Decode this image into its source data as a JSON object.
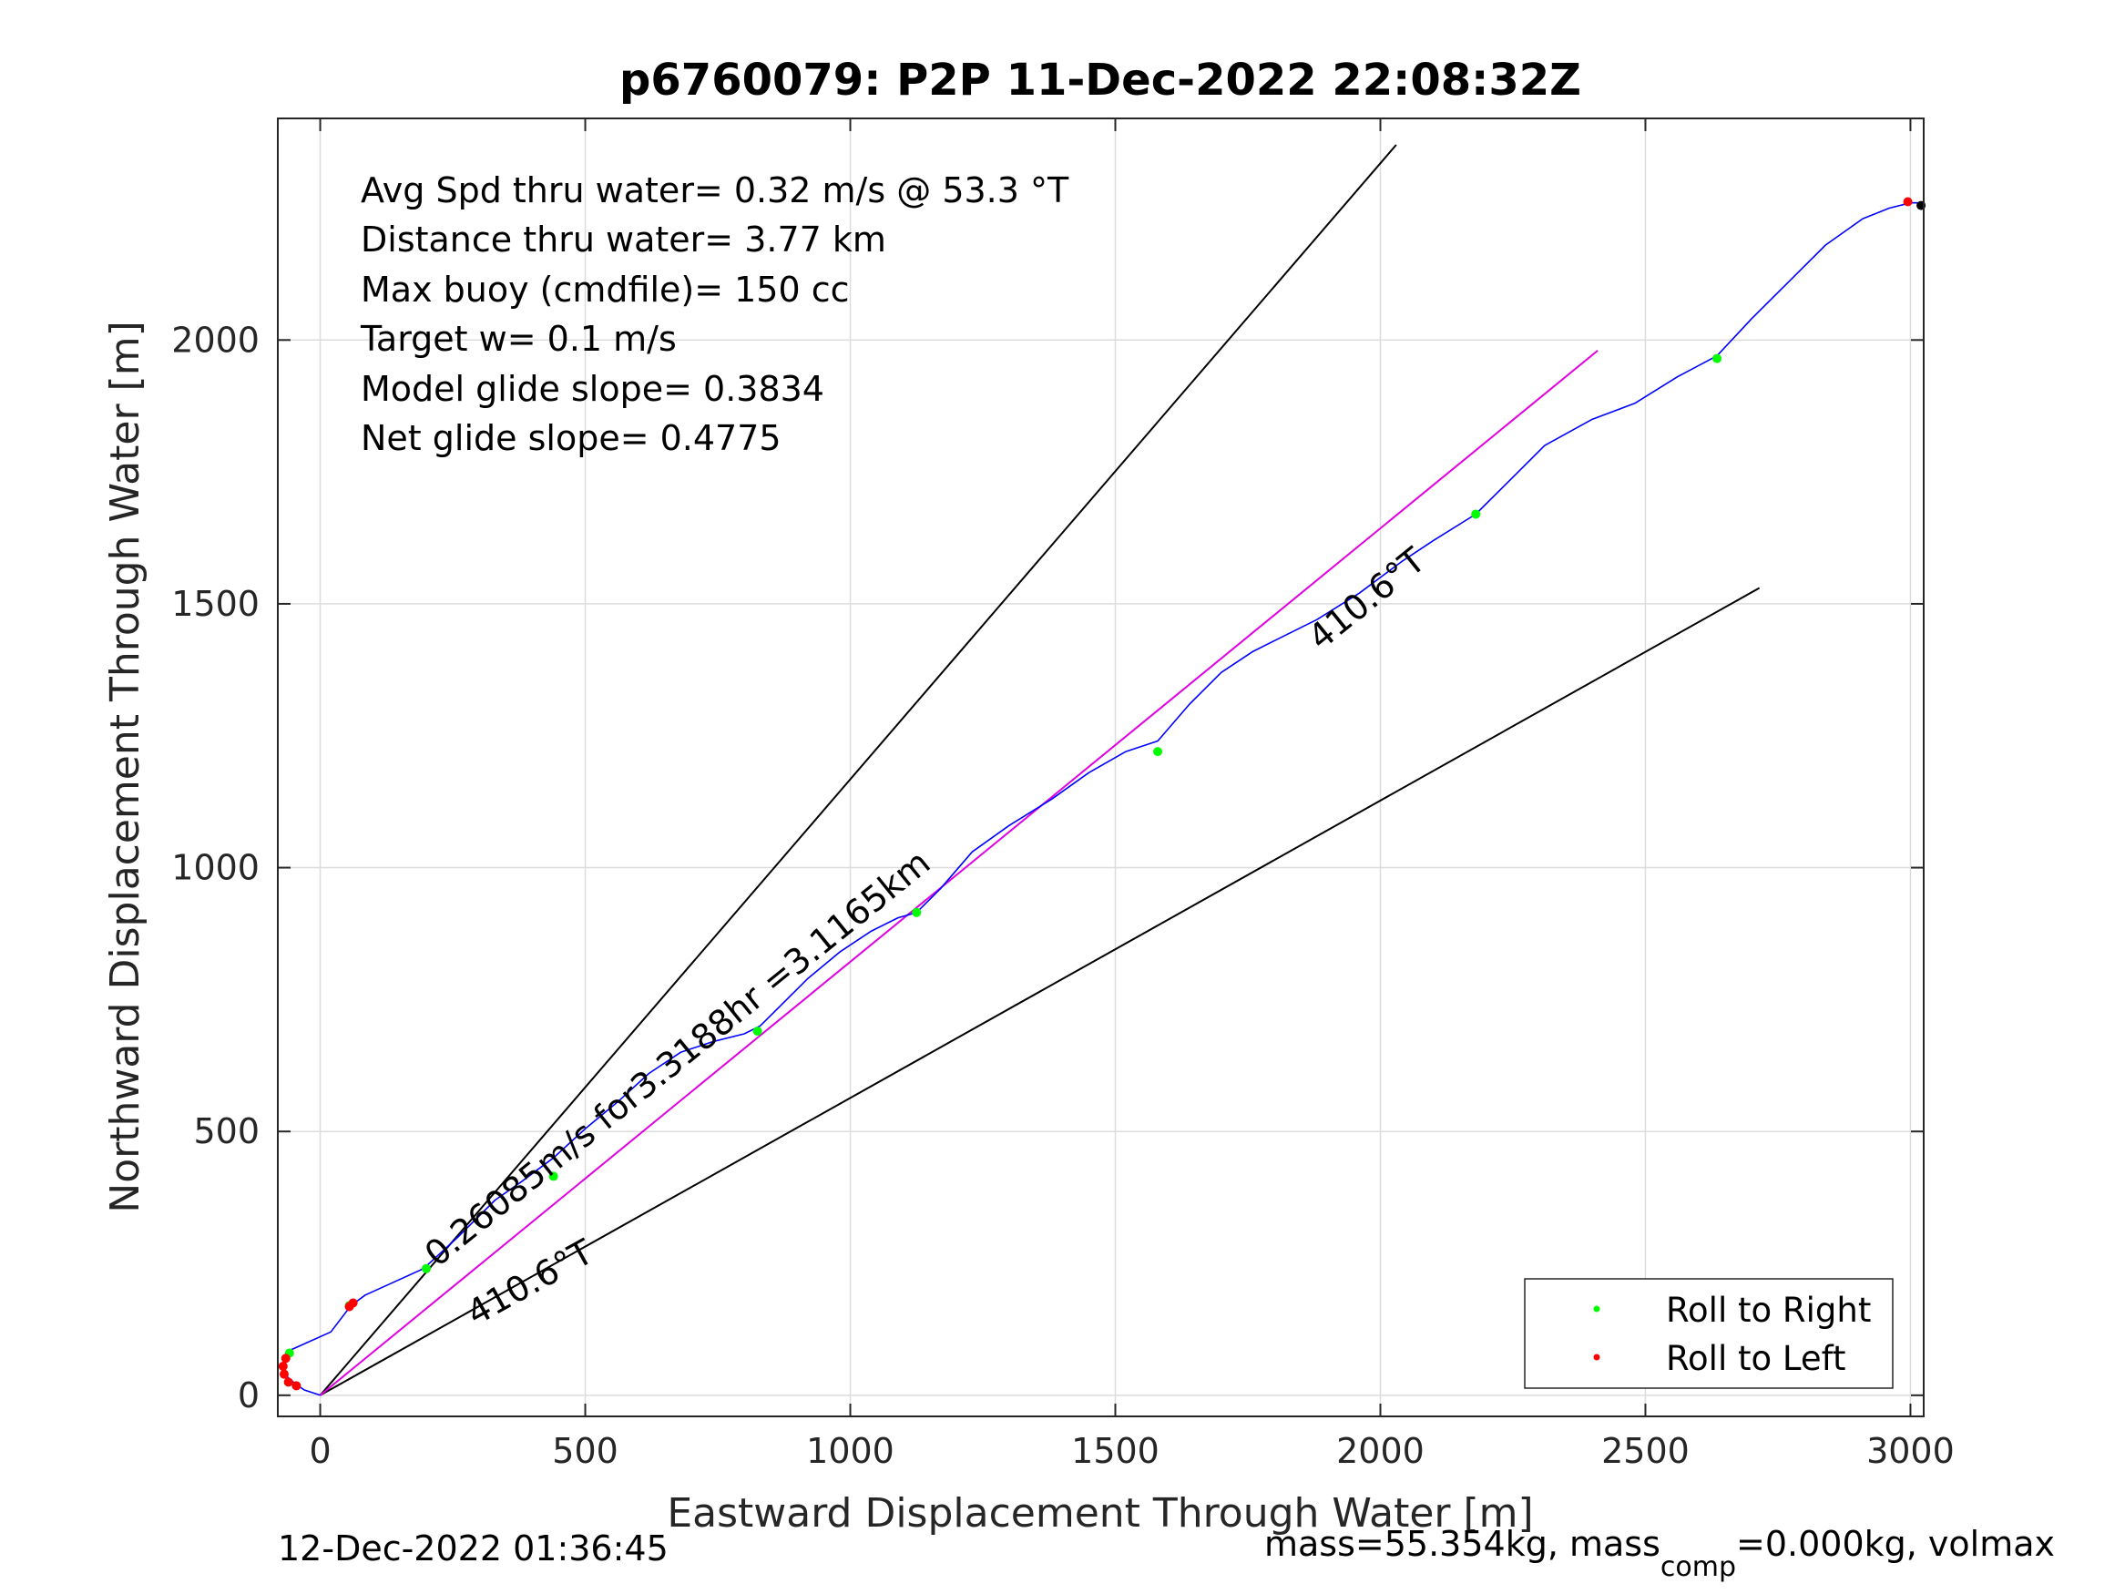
{
  "chart_data": {
    "type": "line",
    "title": "p6760079: P2P 11-Dec-2022 22:08:32Z",
    "xlabel": "Eastward Displacement Through Water [m]",
    "ylabel": "Northward Displacement Through Water [m]",
    "xlim": [
      -80,
      3025
    ],
    "ylim": [
      -40,
      2420
    ],
    "xticks": [
      0,
      500,
      1000,
      1500,
      2000,
      2500,
      3000
    ],
    "yticks": [
      0,
      500,
      1000,
      1500,
      2000
    ],
    "grid": true,
    "stats": [
      "Avg Spd thru water=  0.32 m/s @  53.3 °T",
      "Distance thru water=  3.77 km",
      "Max buoy (cmdfile)= 150 cc",
      "Target w= 0.1 m/s",
      "Model glide slope= 0.3834",
      "Net glide slope= 0.4775"
    ],
    "annotations": {
      "speed_label": "0.26085m/s for3.3188hr =3.1165km",
      "heading_label_upper": "410.6°T",
      "heading_label_lower": "410.6°T"
    },
    "cone_lines": [
      {
        "color": "#000000",
        "x": [
          0,
          2030
        ],
        "y": [
          0,
          2370
        ]
      },
      {
        "color": "#000000",
        "x": [
          0,
          2715
        ],
        "y": [
          0,
          1530
        ]
      }
    ],
    "heading_line": {
      "color": "#e000e0",
      "x": [
        0,
        2410
      ],
      "y": [
        0,
        1980
      ]
    },
    "track": {
      "color": "#0000ff",
      "x": [
        0,
        -30,
        -45,
        -62,
        -70,
        -68,
        -58,
        -42,
        20,
        58,
        85,
        140,
        195,
        260,
        330,
        380,
        440,
        500,
        560,
        620,
        680,
        740,
        800,
        830,
        870,
        920,
        980,
        1040,
        1090,
        1125,
        1170,
        1230,
        1300,
        1380,
        1450,
        1520,
        1580,
        1640,
        1700,
        1760,
        1820,
        1880,
        1960,
        2040,
        2100,
        2180,
        2240,
        2310,
        2400,
        2480,
        2560,
        2635,
        2700,
        2770,
        2840,
        2910,
        2960,
        3000,
        3020
      ],
      "y": [
        0,
        10,
        20,
        35,
        55,
        75,
        85,
        92,
        120,
        170,
        190,
        215,
        240,
        300,
        370,
        405,
        450,
        505,
        555,
        610,
        650,
        670,
        685,
        700,
        740,
        790,
        840,
        880,
        905,
        915,
        960,
        1030,
        1080,
        1130,
        1180,
        1220,
        1240,
        1310,
        1370,
        1410,
        1440,
        1470,
        1520,
        1580,
        1620,
        1670,
        1730,
        1800,
        1850,
        1880,
        1930,
        1970,
        2040,
        2110,
        2180,
        2230,
        2250,
        2260,
        2260
      ]
    },
    "series": [
      {
        "name": "Roll to Right",
        "color": "#00ff00",
        "x": [
          -58,
          55,
          200,
          440,
          825,
          1125,
          1580,
          2180,
          2635
        ],
        "y": [
          80,
          170,
          240,
          415,
          690,
          915,
          1220,
          1670,
          1965
        ]
      },
      {
        "name": "Roll to Left",
        "color": "#ff0000",
        "x": [
          -65,
          -70,
          -68,
          -60,
          -45,
          55,
          62,
          2995
        ],
        "y": [
          70,
          55,
          40,
          25,
          18,
          168,
          175,
          2262
        ]
      }
    ],
    "end_marker": {
      "color": "#000000",
      "x": 3020,
      "y": 2255
    },
    "legend": {
      "position": "bottom-right"
    }
  },
  "footer": {
    "timestamp": "12-Dec-2022 01:36:45",
    "mass_text_before": "mass=55.354kg, mass",
    "mass_subscript": "comp",
    "mass_text_after": "=0.000kg, volmax"
  }
}
